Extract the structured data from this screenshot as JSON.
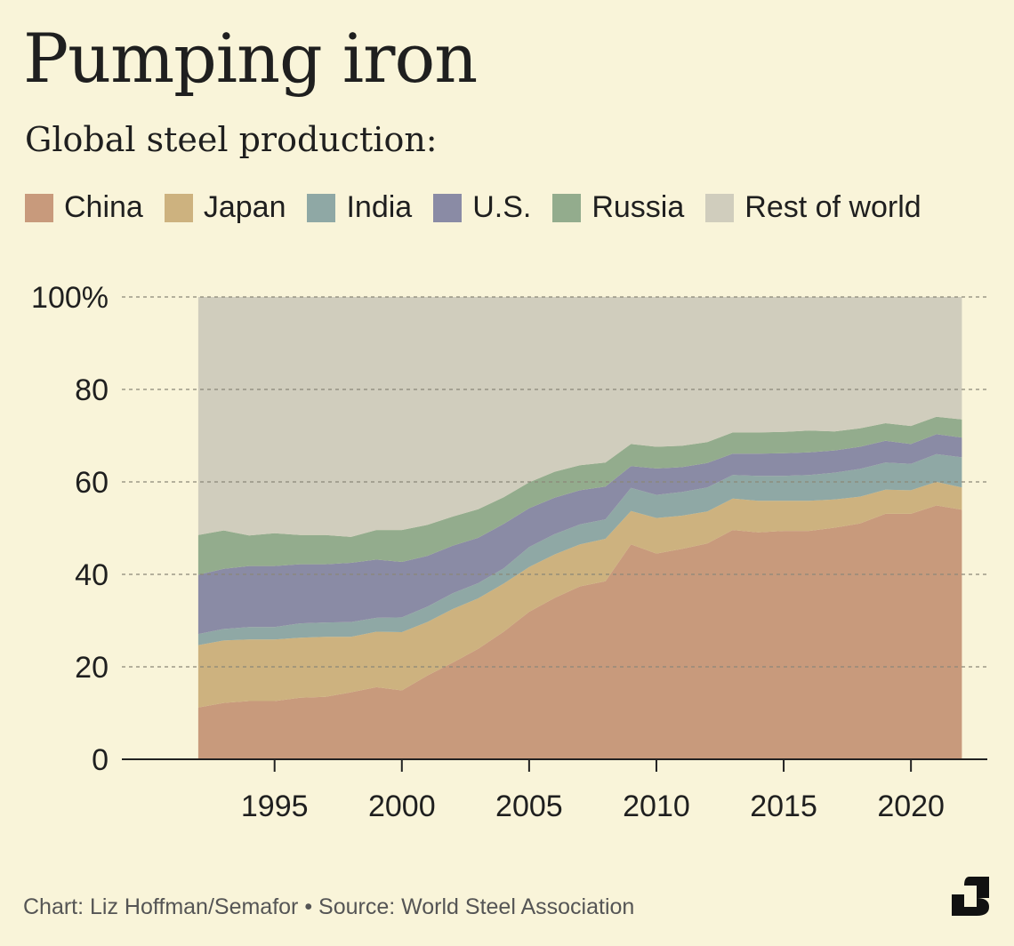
{
  "title": "Pumping iron",
  "subtitle": "Global steel production:",
  "footer": "Chart: Liz Hoffman/Semafor • Source: World Steel Association",
  "logo_icon": "semafor-s-logo",
  "chart_data": {
    "type": "area",
    "stacked": true,
    "x": [
      1992,
      1993,
      1994,
      1995,
      1996,
      1997,
      1998,
      1999,
      2000,
      2001,
      2002,
      2003,
      2004,
      2005,
      2006,
      2007,
      2008,
      2009,
      2010,
      2011,
      2012,
      2013,
      2014,
      2015,
      2016,
      2017,
      2018,
      2019,
      2020,
      2021,
      2022
    ],
    "series": [
      {
        "name": "China",
        "color": "#c89a7c",
        "values": [
          11.2,
          12.2,
          12.6,
          12.6,
          13.3,
          13.5,
          14.5,
          15.6,
          14.9,
          18.1,
          20.9,
          23.9,
          27.6,
          31.9,
          34.9,
          37.4,
          38.5,
          46.5,
          44.5,
          45.5,
          46.7,
          49.6,
          49.1,
          49.4,
          49.4,
          50.1,
          51.0,
          53.1,
          53.1,
          54.9,
          54.0
        ]
      },
      {
        "name": "Japan",
        "color": "#cdb27f",
        "values": [
          13.5,
          13.5,
          13.3,
          13.3,
          13.0,
          13.0,
          12.0,
          12.0,
          12.6,
          11.6,
          11.6,
          10.9,
          10.4,
          9.7,
          9.4,
          9.1,
          9.2,
          7.2,
          7.7,
          7.2,
          6.9,
          6.8,
          6.8,
          6.5,
          6.5,
          6.1,
          5.8,
          5.2,
          5.1,
          5.1,
          4.8
        ]
      },
      {
        "name": "India",
        "color": "#8fa8a5",
        "values": [
          2.4,
          2.5,
          2.7,
          2.7,
          3.1,
          3.1,
          3.2,
          3.0,
          3.2,
          3.3,
          3.4,
          3.3,
          3.3,
          4.3,
          4.4,
          4.3,
          4.2,
          5.0,
          5.0,
          5.1,
          5.2,
          5.1,
          5.4,
          5.4,
          5.6,
          5.8,
          6.0,
          5.9,
          5.7,
          6.0,
          6.5
        ]
      },
      {
        "name": "U.S.",
        "color": "#8a8ba5",
        "values": [
          12.8,
          13.0,
          13.2,
          13.2,
          12.8,
          12.6,
          12.8,
          12.6,
          12.0,
          11.0,
          10.3,
          9.8,
          9.6,
          8.4,
          7.9,
          7.4,
          7.1,
          4.7,
          5.7,
          5.4,
          5.3,
          4.6,
          4.8,
          4.9,
          4.9,
          4.8,
          4.8,
          4.7,
          4.3,
          4.3,
          4.3
        ]
      },
      {
        "name": "Russia",
        "color": "#93ac8d",
        "values": [
          8.6,
          8.3,
          6.6,
          7.1,
          6.3,
          6.3,
          5.6,
          6.4,
          6.9,
          6.7,
          6.3,
          6.2,
          5.8,
          5.6,
          5.6,
          5.4,
          5.2,
          4.8,
          4.7,
          4.6,
          4.5,
          4.6,
          4.6,
          4.6,
          4.7,
          4.1,
          4.0,
          3.8,
          3.9,
          3.8,
          3.9
        ]
      },
      {
        "name": "Rest of world",
        "color": "#d0cdbd",
        "values": [
          51.5,
          50.5,
          51.6,
          51.1,
          51.5,
          51.5,
          51.9,
          50.4,
          50.4,
          49.3,
          47.5,
          45.9,
          43.3,
          40.1,
          37.8,
          36.4,
          35.8,
          31.8,
          32.4,
          32.2,
          31.4,
          29.3,
          29.3,
          29.2,
          28.9,
          29.1,
          28.4,
          27.3,
          27.9,
          25.9,
          26.5
        ]
      }
    ],
    "ylim": [
      0,
      100
    ],
    "yticks": [
      "0",
      "20",
      "40",
      "60",
      "80",
      "100%"
    ],
    "ytick_values": [
      0,
      20,
      40,
      60,
      80,
      100
    ],
    "xticks": [
      "1995",
      "2000",
      "2005",
      "2010",
      "2015",
      "2020"
    ],
    "xtick_values": [
      1995,
      2000,
      2005,
      2010,
      2015,
      2020
    ],
    "xlim": [
      1989,
      2023
    ],
    "grid": true,
    "legend_position": "top"
  }
}
